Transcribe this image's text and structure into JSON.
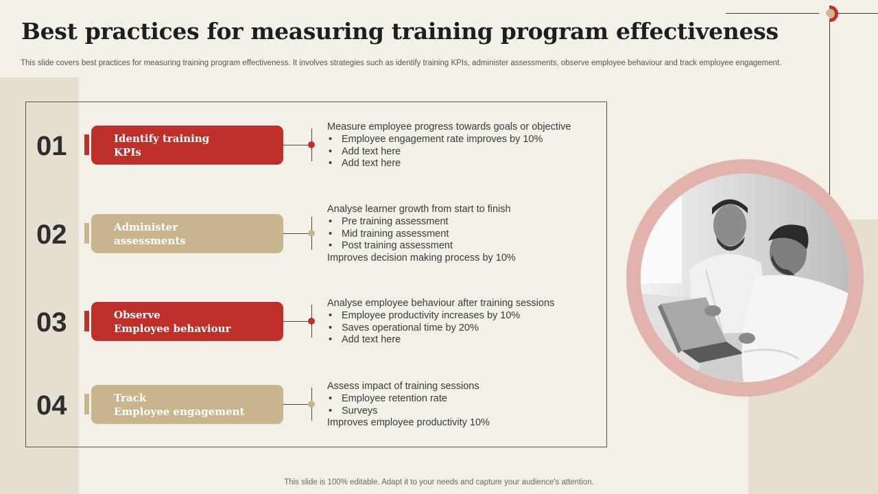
{
  "slide": {
    "title": "Best practices for measuring training program effectiveness",
    "subtitle": "This slide covers best practices for measuring training program effectiveness. It involves strategies such as identify training KPIs, administer assessments, observe employee behaviour and track employee engagement.",
    "footer": "This slide is 100% editable. Adapt it to your needs and capture your audience's attention."
  },
  "colors": {
    "accent_red": "#c0302a",
    "accent_tan": "#c8b58e",
    "background": "#f3f0e8"
  },
  "steps": [
    {
      "number": "01",
      "label_lines": [
        "Identify training",
        "KPIs"
      ],
      "color": "red",
      "lines": [
        {
          "text": "Measure employee progress towards goals or objective",
          "bullet": false
        },
        {
          "text": "Employee engagement rate improves by 10%",
          "bullet": true
        },
        {
          "text": "Add text here",
          "bullet": true
        },
        {
          "text": "Add text here",
          "bullet": true
        }
      ]
    },
    {
      "number": "02",
      "label_lines": [
        "Administer",
        "assessments"
      ],
      "color": "tan",
      "lines": [
        {
          "text": "Analyse learner growth from start to finish",
          "bullet": false
        },
        {
          "text": "Pre training assessment",
          "bullet": true
        },
        {
          "text": "Mid training assessment",
          "bullet": true
        },
        {
          "text": "Post training assessment",
          "bullet": true
        },
        {
          "text": "Improves decision making process by 10%",
          "bullet": false
        }
      ]
    },
    {
      "number": "03",
      "label_lines": [
        "Observe",
        "Employee behaviour"
      ],
      "color": "red",
      "lines": [
        {
          "text": "Analyse employee behaviour after training sessions",
          "bullet": false
        },
        {
          "text": "Employee productivity increases by 10%",
          "bullet": true
        },
        {
          "text": "Saves operational time by 20%",
          "bullet": true
        },
        {
          "text": "Add text here",
          "bullet": true
        }
      ]
    },
    {
      "number": "04",
      "label_lines": [
        "Track",
        "Employee engagement"
      ],
      "color": "tan",
      "lines": [
        {
          "text": "Assess impact of training sessions",
          "bullet": false
        },
        {
          "text": "Employee retention rate",
          "bullet": true
        },
        {
          "text": "Surveys",
          "bullet": true
        },
        {
          "text": "Improves employee productivity 10%",
          "bullet": false
        }
      ]
    }
  ],
  "photo": {
    "subject": "two-men-at-laptop-photo"
  }
}
